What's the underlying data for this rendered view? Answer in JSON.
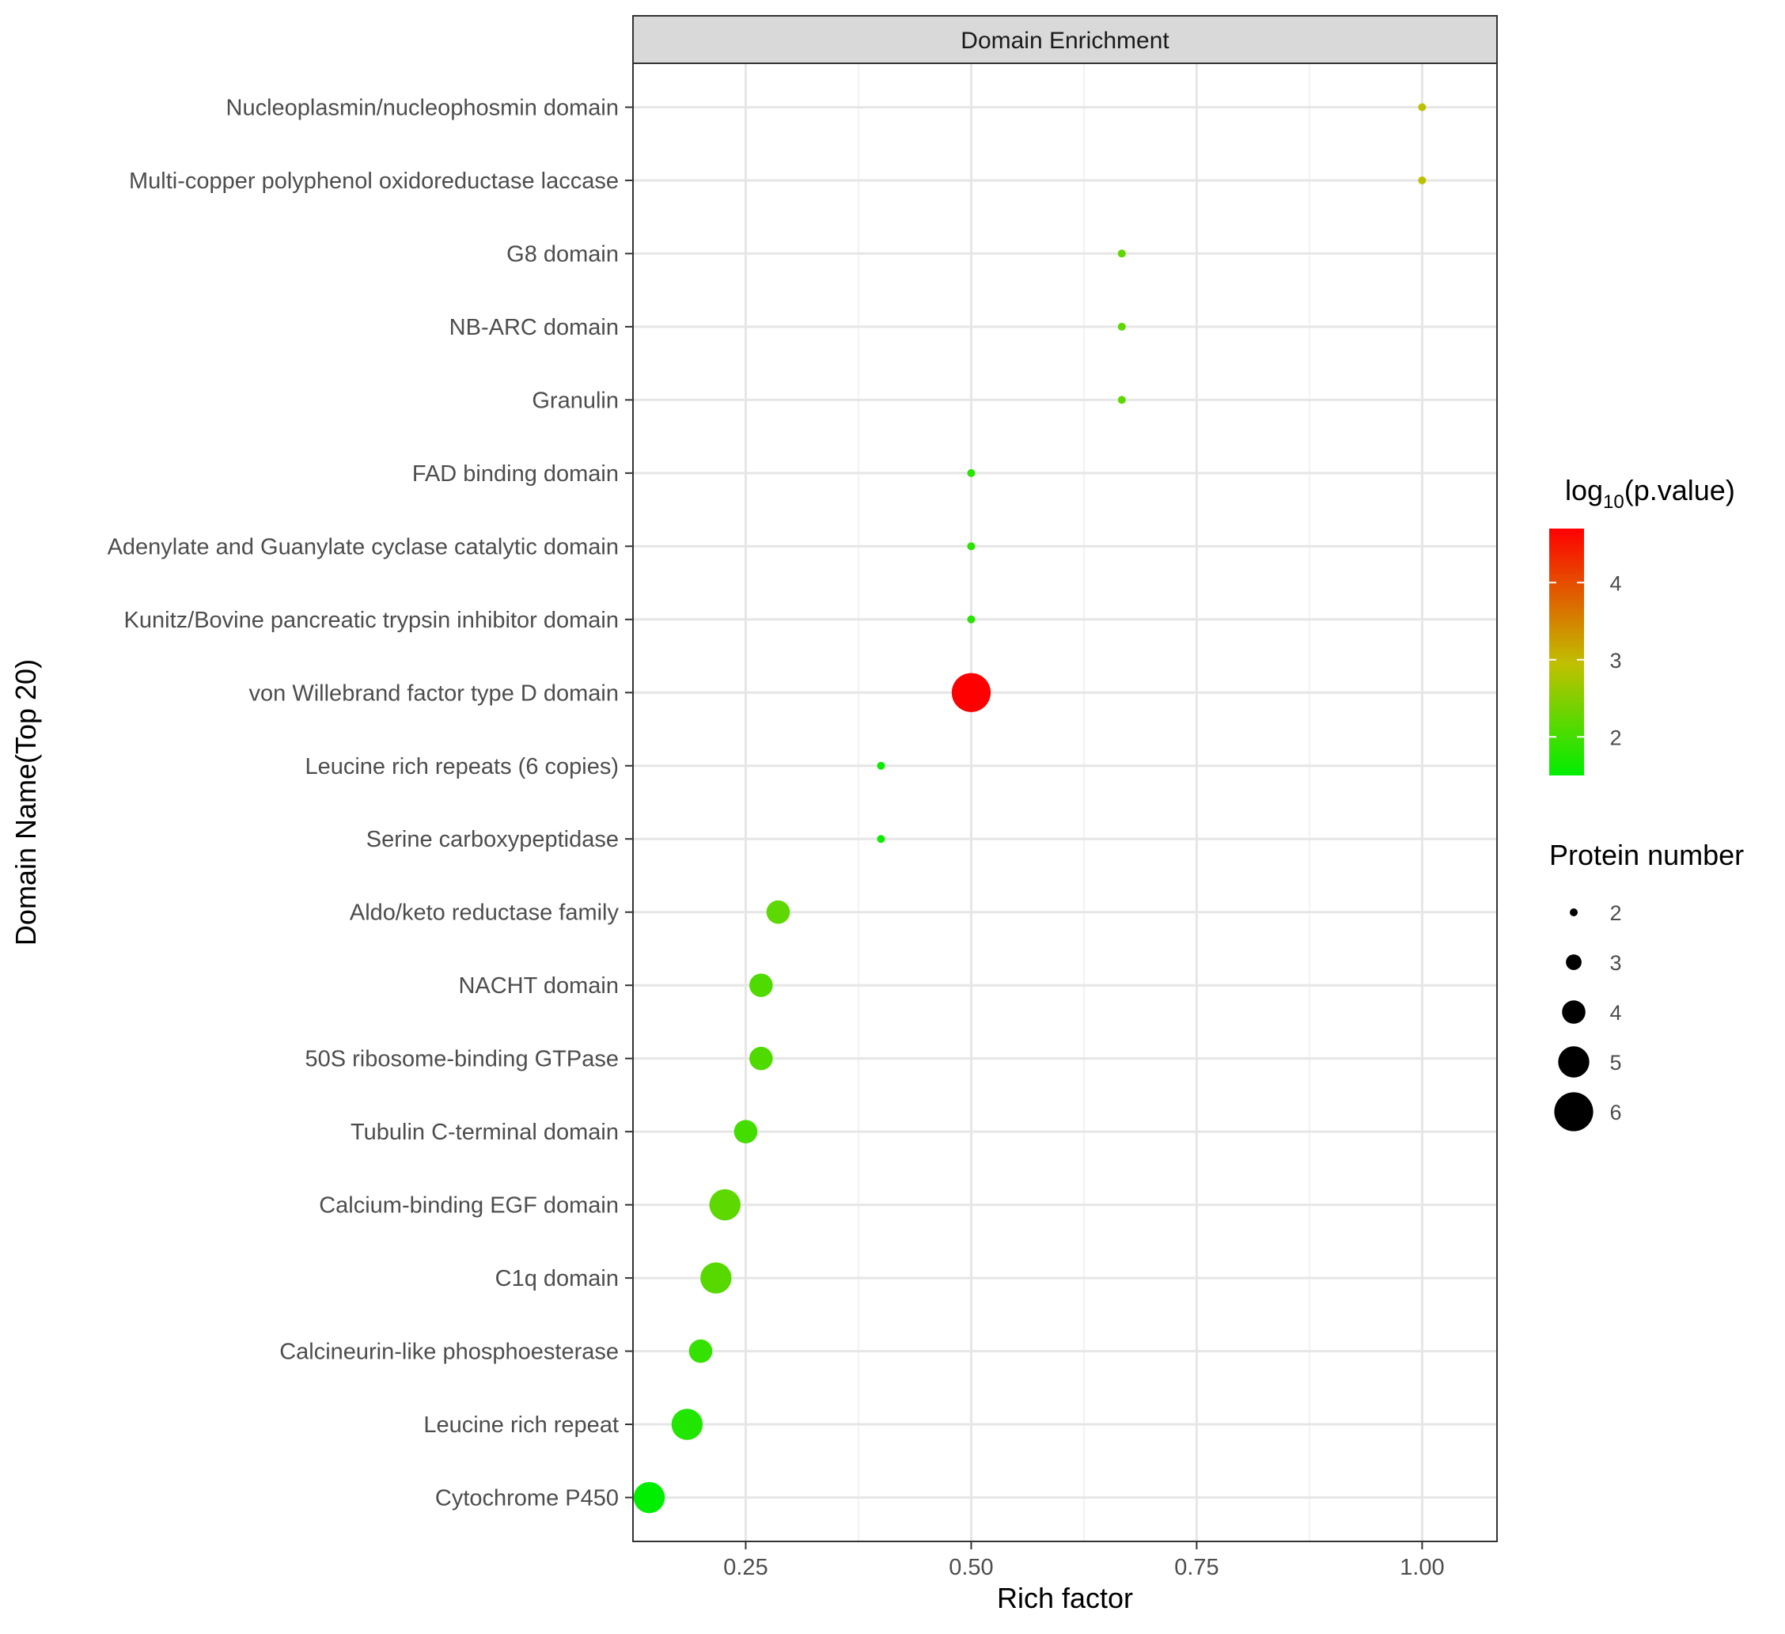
{
  "chart_data": {
    "type": "scatter",
    "title": "",
    "facet_label": "Domain Enrichment",
    "xlabel": "Rich factor",
    "ylabel": "Domain Name(Top 20)",
    "xlim": [
      0.125,
      1.083
    ],
    "x_ticks": [
      0.25,
      0.5,
      0.75,
      1.0
    ],
    "x_tick_labels": [
      "0.25",
      "0.50",
      "0.75",
      "1.00"
    ],
    "grid": true,
    "points": [
      {
        "label": "Nucleoplasmin/nucleophosmin domain",
        "x": 1.0,
        "size": 2,
        "log10p": 2.9
      },
      {
        "label": "Multi-copper polyphenol oxidoreductase laccase",
        "x": 1.0,
        "size": 2,
        "log10p": 2.9
      },
      {
        "label": "G8 domain",
        "x": 0.667,
        "size": 2,
        "log10p": 2.2
      },
      {
        "label": "NB-ARC domain",
        "x": 0.667,
        "size": 2,
        "log10p": 2.2
      },
      {
        "label": "Granulin",
        "x": 0.667,
        "size": 2,
        "log10p": 2.2
      },
      {
        "label": "FAD binding domain",
        "x": 0.5,
        "size": 2,
        "log10p": 1.8
      },
      {
        "label": "Adenylate and Guanylate cyclase catalytic domain",
        "x": 0.5,
        "size": 2,
        "log10p": 1.8
      },
      {
        "label": "Kunitz/Bovine pancreatic trypsin inhibitor domain",
        "x": 0.5,
        "size": 2,
        "log10p": 1.8
      },
      {
        "label": "von Willebrand factor type D domain",
        "x": 0.5,
        "size": 6,
        "log10p": 4.7
      },
      {
        "label": "Leucine rich repeats (6 copies)",
        "x": 0.4,
        "size": 2,
        "log10p": 1.6
      },
      {
        "label": "Serine carboxypeptidase",
        "x": 0.4,
        "size": 2,
        "log10p": 1.6
      },
      {
        "label": "Aldo/keto reductase family",
        "x": 0.286,
        "size": 4,
        "log10p": 2.2
      },
      {
        "label": "NACHT domain",
        "x": 0.267,
        "size": 4,
        "log10p": 2.1
      },
      {
        "label": "50S ribosome-binding GTPase",
        "x": 0.267,
        "size": 4,
        "log10p": 2.1
      },
      {
        "label": "Tubulin C-terminal domain",
        "x": 0.25,
        "size": 4,
        "log10p": 2.0
      },
      {
        "label": "Calcium-binding EGF domain",
        "x": 0.227,
        "size": 5,
        "log10p": 2.2
      },
      {
        "label": "C1q domain",
        "x": 0.217,
        "size": 5,
        "log10p": 2.15
      },
      {
        "label": "Calcineurin-like phosphoesterase",
        "x": 0.2,
        "size": 4,
        "log10p": 1.9
      },
      {
        "label": "Leucine rich repeat",
        "x": 0.185,
        "size": 5,
        "log10p": 1.75
      },
      {
        "label": "Cytochrome P450",
        "x": 0.143,
        "size": 5,
        "log10p": 1.5
      }
    ],
    "legend_color": {
      "title_prefix": "log",
      "title_sub": "10",
      "title_suffix": "(p.value)",
      "range": [
        1.5,
        4.7
      ],
      "ticks": [
        2,
        3,
        4
      ],
      "tick_labels": [
        "2",
        "3",
        "4"
      ],
      "colors": {
        "low": "#00ee00",
        "mid": "#c0c000",
        "high": "#ff0000"
      }
    },
    "legend_size": {
      "title": "Protein number",
      "values": [
        2,
        3,
        4,
        5,
        6
      ],
      "labels": [
        "2",
        "3",
        "4",
        "5",
        "6"
      ]
    },
    "colors": {
      "panel_border": "#333333",
      "strip_fill": "#d9d9d9",
      "grid_major": "#e6e6e6",
      "grid_minor": "#f2f2f2",
      "axis_text": "#4d4d4d",
      "title_text": "#000000"
    }
  }
}
